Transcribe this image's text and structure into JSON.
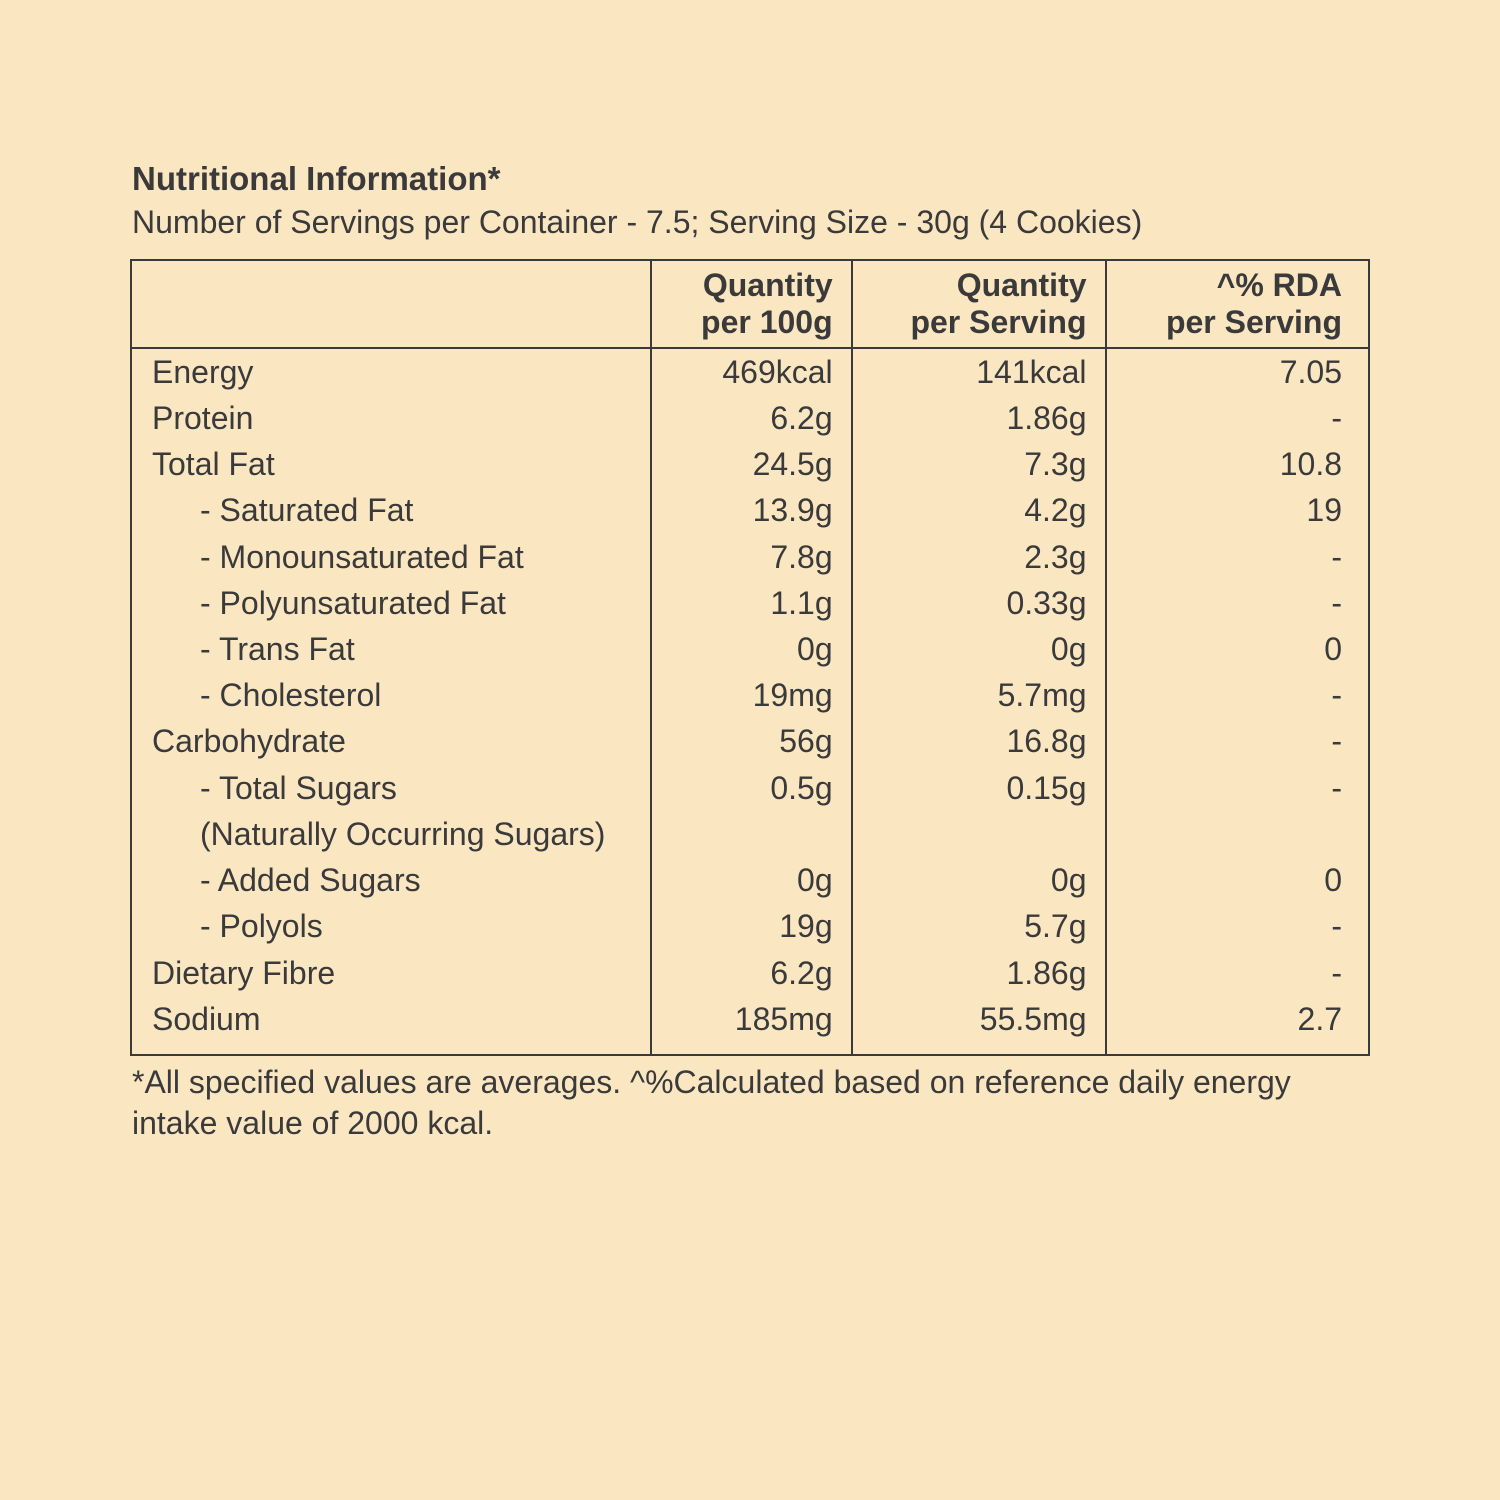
{
  "title": "Nutritional Information*",
  "subtitle": "Number of Servings per Container - 7.5; Serving Size - 30g  (4 Cookies)",
  "columns": [
    "",
    "Quantity<br>per 100g",
    "Quantity<br>per Serving",
    "^% RDA<br>per Serving"
  ],
  "rows": [
    {
      "label": "Energy",
      "indent": 0,
      "q100": "469kcal",
      "qserv": "141kcal",
      "rda": "7.05"
    },
    {
      "label": "Protein",
      "indent": 0,
      "q100": "6.2g",
      "qserv": "1.86g",
      "rda": "-"
    },
    {
      "label": "Total Fat",
      "indent": 0,
      "q100": "24.5g",
      "qserv": "7.3g",
      "rda": "10.8"
    },
    {
      "label": "- Saturated Fat",
      "indent": 1,
      "q100": "13.9g",
      "qserv": "4.2g",
      "rda": "19"
    },
    {
      "label": "- Monounsaturated Fat",
      "indent": 1,
      "q100": "7.8g",
      "qserv": "2.3g",
      "rda": "-"
    },
    {
      "label": "- Polyunsaturated Fat",
      "indent": 1,
      "q100": "1.1g",
      "qserv": "0.33g",
      "rda": "-"
    },
    {
      "label": "- Trans Fat",
      "indent": 1,
      "q100": "0g",
      "qserv": "0g",
      "rda": "0"
    },
    {
      "label": "- Cholesterol",
      "indent": 1,
      "q100": "19mg",
      "qserv": "5.7mg",
      "rda": "-"
    },
    {
      "label": "Carbohydrate",
      "indent": 0,
      "q100": "56g",
      "qserv": "16.8g",
      "rda": "-"
    },
    {
      "label": "- Total Sugars",
      "indent": 1,
      "q100": "0.5g",
      "qserv": "0.15g",
      "rda": "-"
    },
    {
      "label": "(Naturally Occurring Sugars)",
      "indent": 1,
      "q100": "",
      "qserv": "",
      "rda": ""
    },
    {
      "label": "- Added Sugars",
      "indent": 1,
      "q100": "0g",
      "qserv": "0g",
      "rda": "0"
    },
    {
      "label": "- Polyols",
      "indent": 1,
      "q100": "19g",
      "qserv": "5.7g",
      "rda": "-"
    },
    {
      "label": "Dietary Fibre",
      "indent": 0,
      "q100": "6.2g",
      "qserv": "1.86g",
      "rda": "-"
    },
    {
      "label": "Sodium",
      "indent": 0,
      "q100": "185mg",
      "qserv": "55.5mg",
      "rda": "2.7"
    }
  ],
  "footnote": "*All specified values are averages. ^%Calculated based on reference daily energy intake value of 2000 kcal."
}
